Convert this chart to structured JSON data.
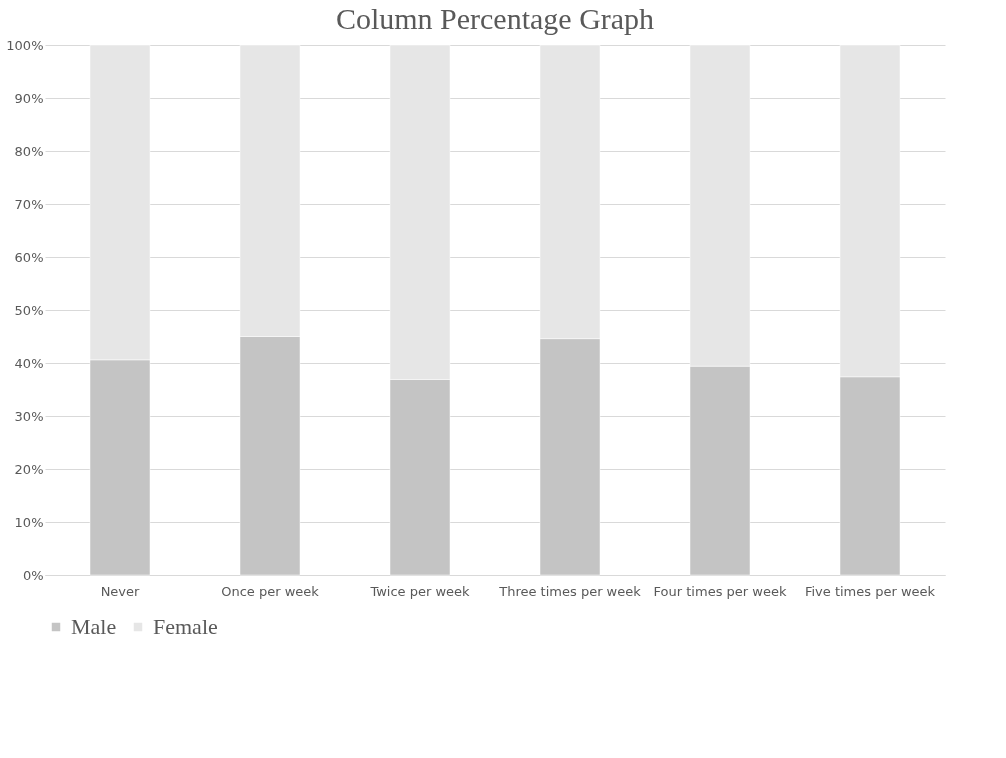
{
  "chart_data": {
    "type": "bar",
    "title": "Column Percentage Graph",
    "stacked": true,
    "categories": [
      "Never",
      "Once per week",
      "Twice per week",
      "Three times per week",
      "Four times per week",
      "Five times per week"
    ],
    "series": [
      {
        "name": "Male",
        "color": "#c4c4c4",
        "values": [
          40.6,
          45.0,
          36.9,
          44.6,
          39.4,
          37.4
        ]
      },
      {
        "name": "Female",
        "color": "#e6e6e6",
        "values": [
          59.4,
          55.0,
          63.1,
          55.4,
          60.6,
          62.6
        ]
      }
    ],
    "ylim": [
      0,
      100
    ],
    "yticks": [
      {
        "value": 0,
        "label": "0%"
      },
      {
        "value": 10,
        "label": "10%"
      },
      {
        "value": 20,
        "label": "20%"
      },
      {
        "value": 30,
        "label": "30%"
      },
      {
        "value": 40,
        "label": "40%"
      },
      {
        "value": 50,
        "label": "50%"
      },
      {
        "value": 60,
        "label": "60%"
      },
      {
        "value": 70,
        "label": "70%"
      },
      {
        "value": 80,
        "label": "80%"
      },
      {
        "value": 90,
        "label": "90%"
      },
      {
        "value": 100,
        "label": "100%"
      }
    ],
    "grid": "y",
    "legend": "bottom"
  }
}
